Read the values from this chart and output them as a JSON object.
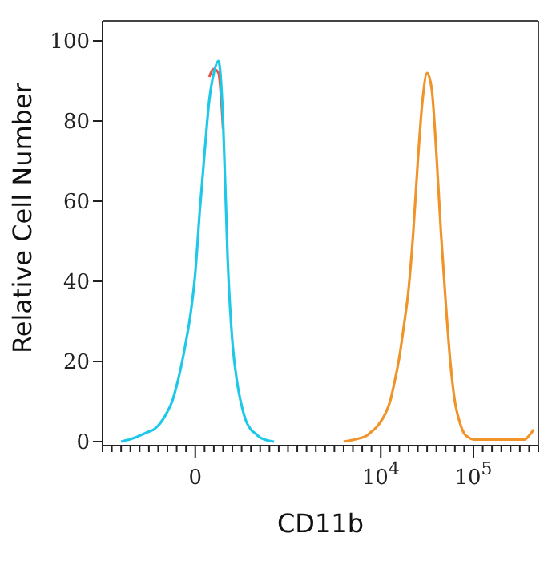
{
  "chart_data": {
    "type": "line",
    "xlabel": "CD11b",
    "ylabel": "Relative Cell Number",
    "ylim": [
      -1,
      105
    ],
    "categories": [
      null,
      null,
      null,
      null,
      null,
      null,
      null,
      null,
      null,
      null,
      null,
      null,
      null,
      null,
      null,
      null,
      null,
      null,
      null,
      null,
      "0",
      null,
      null,
      null,
      null,
      null,
      null,
      null,
      null,
      null,
      null,
      null,
      null,
      null,
      null,
      null,
      null,
      null,
      null,
      null,
      null,
      null,
      null,
      null,
      null,
      null,
      null,
      null,
      null,
      null,
      null,
      null,
      null,
      null,
      null,
      null,
      null,
      null,
      null,
      null,
      "10$^{4}$",
      null,
      null,
      null,
      null,
      null,
      null,
      null,
      null,
      null,
      null,
      null,
      null,
      null,
      null,
      null,
      null,
      null,
      null,
      null,
      "10$^{5}$",
      null,
      null,
      null,
      null,
      null,
      null,
      null,
      null,
      null,
      null,
      null,
      null,
      null,
      null
    ],
    "yticks": [
      0,
      20,
      40,
      60,
      80,
      100
    ],
    "marker": "none",
    "line_style": "solid",
    "series": [
      {
        "color": "#e05a4a",
        "values": [
          null,
          null,
          null,
          null,
          null,
          null,
          null,
          null,
          null,
          null,
          null,
          null,
          null,
          null,
          null,
          null,
          null,
          null,
          null,
          null,
          null,
          null,
          null,
          91,
          93,
          92,
          78,
          null,
          null,
          null,
          null,
          null,
          null,
          null,
          null,
          null,
          null,
          null,
          null,
          null,
          null,
          null,
          null,
          null,
          null,
          null,
          null,
          null,
          null,
          null,
          null,
          null,
          null,
          null,
          null,
          null,
          null,
          null,
          null,
          null,
          null,
          null,
          null,
          null,
          null,
          null,
          null,
          null,
          null,
          null,
          null,
          null,
          null,
          null,
          null,
          null,
          null,
          null,
          null,
          null,
          null,
          null,
          null,
          null,
          null,
          null,
          null,
          null,
          null,
          null,
          null,
          null,
          null,
          null,
          null
        ]
      },
      {
        "color": "#1ec8e8",
        "values": [
          null,
          null,
          null,
          null,
          0,
          0.3,
          0.6,
          1,
          1.5,
          2,
          2.5,
          3,
          4,
          5.5,
          7.5,
          10,
          14,
          19,
          25,
          32,
          42,
          58,
          72,
          85,
          92,
          95,
          80,
          45,
          25,
          15,
          9,
          5,
          3,
          2,
          1,
          0.5,
          0.2,
          0,
          null,
          null,
          null,
          null,
          null,
          null,
          null,
          null,
          null,
          null,
          null,
          null,
          null,
          null,
          null,
          null,
          null,
          null,
          null,
          null,
          null,
          null,
          null,
          null,
          null,
          null,
          null,
          null,
          null,
          null,
          null,
          null,
          null,
          null,
          null,
          null,
          null,
          null,
          null,
          null,
          null,
          null,
          null,
          null,
          null,
          null,
          null,
          null,
          null,
          null,
          null,
          null,
          null,
          null,
          null,
          null,
          null
        ]
      },
      {
        "color": "#f0942a",
        "values": [
          null,
          null,
          null,
          null,
          null,
          null,
          null,
          null,
          null,
          null,
          null,
          null,
          null,
          null,
          null,
          null,
          null,
          null,
          null,
          null,
          null,
          null,
          null,
          null,
          null,
          null,
          null,
          null,
          null,
          null,
          null,
          null,
          null,
          null,
          null,
          null,
          null,
          null,
          null,
          null,
          null,
          null,
          null,
          null,
          null,
          null,
          null,
          null,
          null,
          null,
          null,
          null,
          0,
          0.2,
          0.4,
          0.7,
          1,
          1.5,
          2.5,
          3.5,
          5,
          7,
          10,
          15,
          21,
          29,
          38,
          52,
          70,
          85,
          92,
          88,
          72,
          52,
          35,
          20,
          10,
          5,
          2,
          1,
          0.5,
          0.5,
          0.5,
          0.5,
          0.5,
          0.5,
          0.5,
          0.5,
          0.5,
          0.5,
          0.5,
          0.5,
          1.5,
          3,
          null
        ]
      }
    ]
  }
}
